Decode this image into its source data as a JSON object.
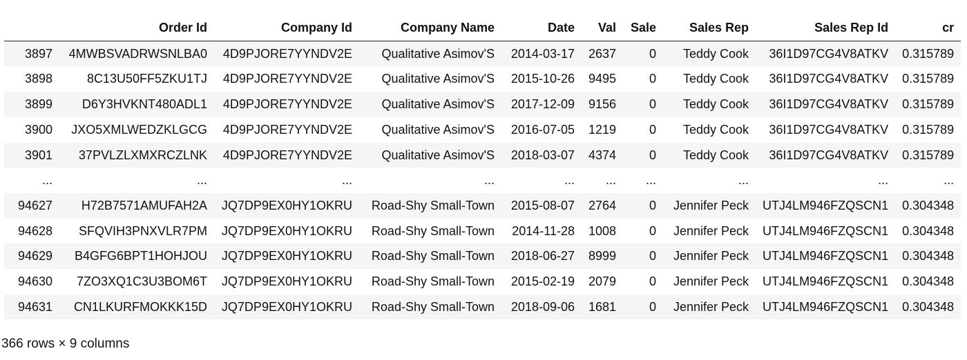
{
  "table": {
    "columns": [
      "",
      "Order Id",
      "Company Id",
      "Company Name",
      "Date",
      "Val",
      "Sale",
      "Sales Rep",
      "Sales Rep Id",
      "cr"
    ],
    "rows": [
      [
        "3897",
        "4MWBSVADRWSNLBA0",
        "4D9PJORE7YYNDV2E",
        "Qualitative Asimov'S",
        "2014-03-17",
        "2637",
        "0",
        "Teddy Cook",
        "36I1D97CG4V8ATKV",
        "0.315789"
      ],
      [
        "3898",
        "8C13U50FF5ZKU1TJ",
        "4D9PJORE7YYNDV2E",
        "Qualitative Asimov'S",
        "2015-10-26",
        "9495",
        "0",
        "Teddy Cook",
        "36I1D97CG4V8ATKV",
        "0.315789"
      ],
      [
        "3899",
        "D6Y3HVKNT480ADL1",
        "4D9PJORE7YYNDV2E",
        "Qualitative Asimov'S",
        "2017-12-09",
        "9156",
        "0",
        "Teddy Cook",
        "36I1D97CG4V8ATKV",
        "0.315789"
      ],
      [
        "3900",
        "JXO5XMLWEDZKLGCG",
        "4D9PJORE7YYNDV2E",
        "Qualitative Asimov'S",
        "2016-07-05",
        "1219",
        "0",
        "Teddy Cook",
        "36I1D97CG4V8ATKV",
        "0.315789"
      ],
      [
        "3901",
        "37PVLZLXMXRCZLNK",
        "4D9PJORE7YYNDV2E",
        "Qualitative Asimov'S",
        "2018-03-07",
        "4374",
        "0",
        "Teddy Cook",
        "36I1D97CG4V8ATKV",
        "0.315789"
      ],
      [
        "...",
        "...",
        "...",
        "...",
        "...",
        "...",
        "...",
        "...",
        "...",
        "..."
      ],
      [
        "94627",
        "H72B7571AMUFAH2A",
        "JQ7DP9EX0HY1OKRU",
        "Road-Shy Small-Town",
        "2015-08-07",
        "2764",
        "0",
        "Jennifer Peck",
        "UTJ4LM946FZQSCN1",
        "0.304348"
      ],
      [
        "94628",
        "SFQVIH3PNXVLR7PM",
        "JQ7DP9EX0HY1OKRU",
        "Road-Shy Small-Town",
        "2014-11-28",
        "1008",
        "0",
        "Jennifer Peck",
        "UTJ4LM946FZQSCN1",
        "0.304348"
      ],
      [
        "94629",
        "B4GFG6BPT1HOHJOU",
        "JQ7DP9EX0HY1OKRU",
        "Road-Shy Small-Town",
        "2018-06-27",
        "8999",
        "0",
        "Jennifer Peck",
        "UTJ4LM946FZQSCN1",
        "0.304348"
      ],
      [
        "94630",
        "7ZO3XQ1C3U3BOM6T",
        "JQ7DP9EX0HY1OKRU",
        "Road-Shy Small-Town",
        "2015-02-19",
        "2079",
        "0",
        "Jennifer Peck",
        "UTJ4LM946FZQSCN1",
        "0.304348"
      ],
      [
        "94631",
        "CN1LKURFMOKKK15D",
        "JQ7DP9EX0HY1OKRU",
        "Road-Shy Small-Town",
        "2018-09-06",
        "1681",
        "0",
        "Jennifer Peck",
        "UTJ4LM946FZQSCN1",
        "0.304348"
      ]
    ]
  },
  "footer": {
    "shape_text": "366 rows × 9 columns"
  }
}
